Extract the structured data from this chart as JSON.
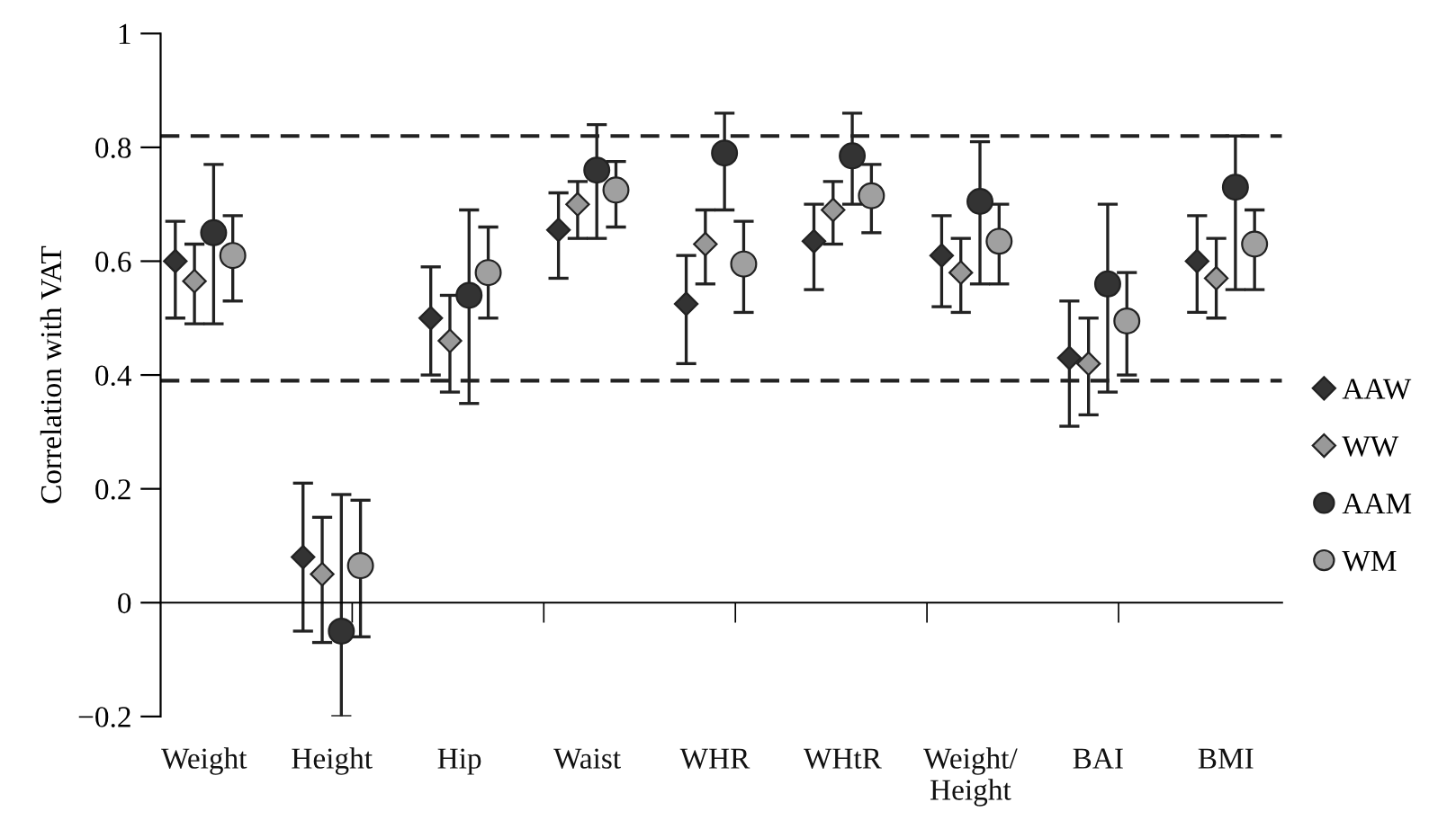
{
  "chart_data": {
    "type": "scatter",
    "ylabel": "Correlation with VAT",
    "categories": [
      "Weight",
      "Height",
      "Hip",
      "Waist",
      "WHR",
      "WHtR",
      "Weight/\nHeight",
      "BAI",
      "BMI"
    ],
    "series": [
      {
        "name": "AAW",
        "color": "#333333",
        "marker": "diamond",
        "values": [
          0.6,
          0.08,
          0.5,
          0.655,
          0.525,
          0.635,
          0.61,
          0.43,
          0.6
        ],
        "errors": [
          [
            0.5,
            0.67
          ],
          [
            -0.05,
            0.21
          ],
          [
            0.4,
            0.59
          ],
          [
            0.57,
            0.72
          ],
          [
            0.42,
            0.61
          ],
          [
            0.55,
            0.7
          ],
          [
            0.52,
            0.68
          ],
          [
            0.31,
            0.53
          ],
          [
            0.51,
            0.68
          ]
        ]
      },
      {
        "name": "WW",
        "color": "#999999",
        "marker": "diamond",
        "values": [
          0.565,
          0.05,
          0.46,
          0.7,
          0.63,
          0.69,
          0.58,
          0.42,
          0.57
        ],
        "errors": [
          [
            0.49,
            0.63
          ],
          [
            -0.07,
            0.15
          ],
          [
            0.37,
            0.54
          ],
          [
            0.64,
            0.74
          ],
          [
            0.56,
            0.69
          ],
          [
            0.63,
            0.74
          ],
          [
            0.51,
            0.64
          ],
          [
            0.33,
            0.5
          ],
          [
            0.5,
            0.64
          ]
        ]
      },
      {
        "name": "AAM",
        "color": "#333333",
        "marker": "circle",
        "values": [
          0.65,
          -0.05,
          0.54,
          0.76,
          0.79,
          0.785,
          0.705,
          0.56,
          0.73
        ],
        "errors": [
          [
            0.49,
            0.77
          ],
          [
            -0.2,
            0.19
          ],
          [
            0.35,
            0.69
          ],
          [
            0.64,
            0.84
          ],
          [
            0.69,
            0.86
          ],
          [
            0.7,
            0.86
          ],
          [
            0.56,
            0.81
          ],
          [
            0.37,
            0.7
          ],
          [
            0.55,
            0.82
          ]
        ]
      },
      {
        "name": "WM",
        "color": "#a0a0a0",
        "marker": "circle",
        "values": [
          0.61,
          0.065,
          0.58,
          0.725,
          0.595,
          0.715,
          0.635,
          0.495,
          0.63
        ],
        "errors": [
          [
            0.53,
            0.68
          ],
          [
            -0.06,
            0.18
          ],
          [
            0.5,
            0.66
          ],
          [
            0.66,
            0.775
          ],
          [
            0.51,
            0.67
          ],
          [
            0.65,
            0.77
          ],
          [
            0.56,
            0.7
          ],
          [
            0.4,
            0.58
          ],
          [
            0.55,
            0.69
          ]
        ]
      }
    ],
    "ylim": [
      -0.2,
      1
    ],
    "yticks": [
      {
        "value": -0.2,
        "label": "−0.2"
      },
      0,
      0.2,
      0.4,
      0.6,
      0.8,
      1
    ],
    "ref_lines": [
      {
        "axis": "y",
        "value": 0.82,
        "color": "#222222",
        "line_style": "dashed"
      },
      {
        "axis": "y",
        "value": 0.39,
        "color": "#222222",
        "line_style": "dashed"
      }
    ],
    "legend": "right"
  }
}
